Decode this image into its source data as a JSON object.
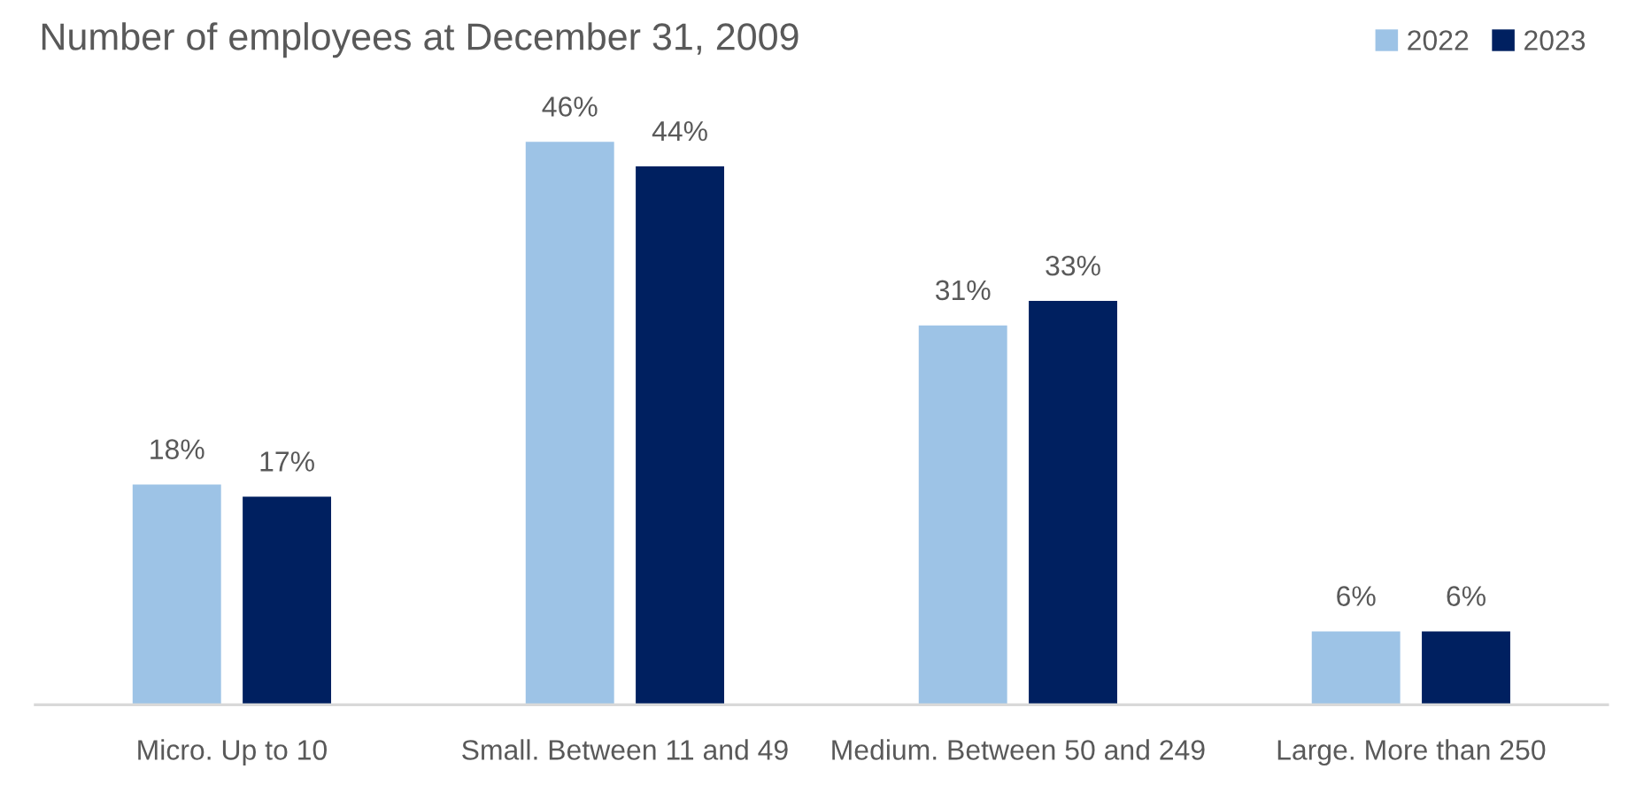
{
  "chart_data": {
    "type": "bar",
    "title": "Number of employees at December 31, 2009",
    "categories": [
      "Micro. Up to 10",
      "Small. Between 11 and 49",
      "Medium. Between 50 and 249",
      "Large. More than 250"
    ],
    "series": [
      {
        "name": "2022",
        "color": "#9dc3e6",
        "values": [
          18,
          46,
          31,
          6
        ],
        "value_labels": [
          "18%",
          "46%",
          "31%",
          "6%"
        ]
      },
      {
        "name": "2023",
        "color": "#002060",
        "values": [
          17,
          44,
          33,
          6
        ],
        "value_labels": [
          "17%",
          "44%",
          "33%",
          "6%"
        ]
      }
    ],
    "legend": "top right",
    "grid": false
  }
}
